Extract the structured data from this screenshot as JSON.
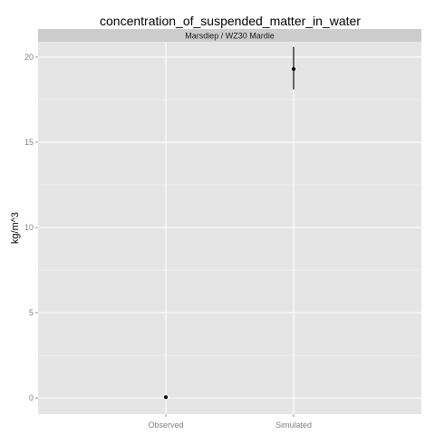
{
  "chart_data": {
    "type": "scatter",
    "title": "concentration_of_suspended_matter_in_water",
    "facet_label": "Marsdiep / WZ30 Mardie",
    "xlabel": "",
    "ylabel": "kg/m^3",
    "categories": [
      "Observed",
      "Simulated"
    ],
    "ylim": [
      -0.95,
      20.9
    ],
    "yticks": [
      0,
      5,
      10,
      15,
      20
    ],
    "ytick_labels": [
      "0",
      "5",
      "10",
      "15",
      "20"
    ],
    "grid": true,
    "points": [
      {
        "category": "Observed",
        "y": 0.05,
        "ymin": 0.05,
        "ymax": 0.05
      },
      {
        "category": "Simulated",
        "y": 19.3,
        "ymin": 18.1,
        "ymax": 20.6
      }
    ],
    "colors": {
      "panel_background": "#e5e5e5",
      "strip_background": "#cccccc",
      "grid_major": "#ffffff",
      "grid_minor": "#f2f2f2",
      "point": "#000000"
    }
  }
}
